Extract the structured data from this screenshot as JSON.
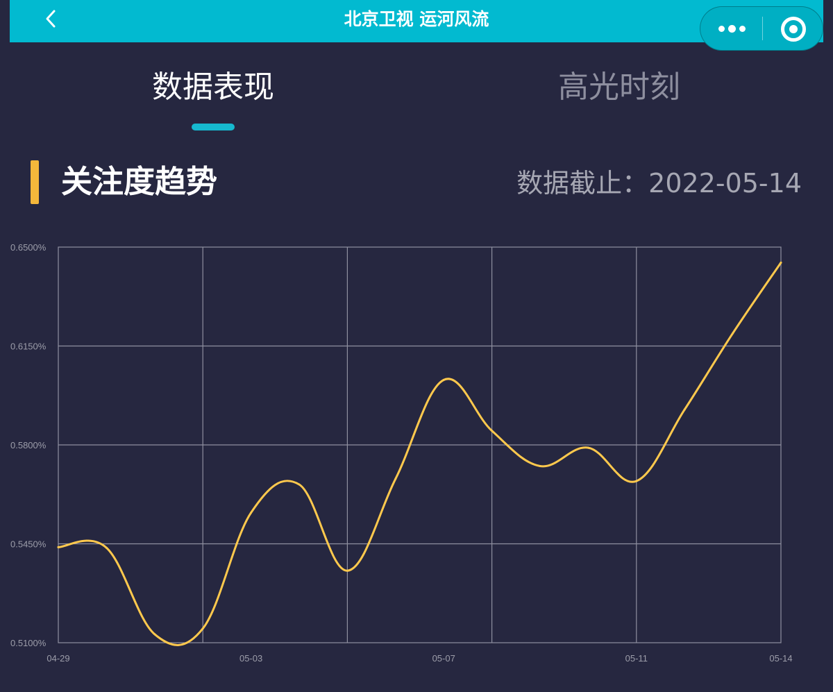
{
  "header": {
    "title": "北京卫视 运河风流",
    "back_icon": "chevron-left-icon",
    "more_icon": "more-dots-icon",
    "close_icon": "target-circle-icon",
    "bar_color": "#02BAD0"
  },
  "tabs": [
    {
      "label": "数据表现",
      "active": true
    },
    {
      "label": "高光时刻",
      "active": false
    }
  ],
  "section": {
    "title": "关注度趋势",
    "cutoff_label": "数据截止：",
    "cutoff_date": "2022-05-14",
    "accent_color": "#F4B73B"
  },
  "chart_data": {
    "type": "line",
    "title": "",
    "xlabel": "",
    "ylabel": "",
    "ylim": [
      0.51,
      0.65
    ],
    "y_ticks": [
      "0.5100%",
      "0.5450%",
      "0.5800%",
      "0.6150%",
      "0.6500%"
    ],
    "x_tick_labels": [
      "04-29",
      "05-03",
      "05-07",
      "05-11",
      "05-14"
    ],
    "x": [
      "04-29",
      "04-30",
      "05-01",
      "05-02",
      "05-03",
      "05-04",
      "05-05",
      "05-06",
      "05-07",
      "05-08",
      "05-09",
      "05-10",
      "05-11",
      "05-12",
      "05-13",
      "05-14"
    ],
    "series": [
      {
        "color": "#FFC94D",
        "values": [
          0.5438,
          0.5436,
          0.513,
          0.515,
          0.556,
          0.566,
          0.5355,
          0.568,
          0.603,
          0.585,
          0.5725,
          0.579,
          0.5672,
          0.5925,
          0.6195,
          0.6445
        ]
      }
    ],
    "grid": true,
    "legend": "none"
  }
}
